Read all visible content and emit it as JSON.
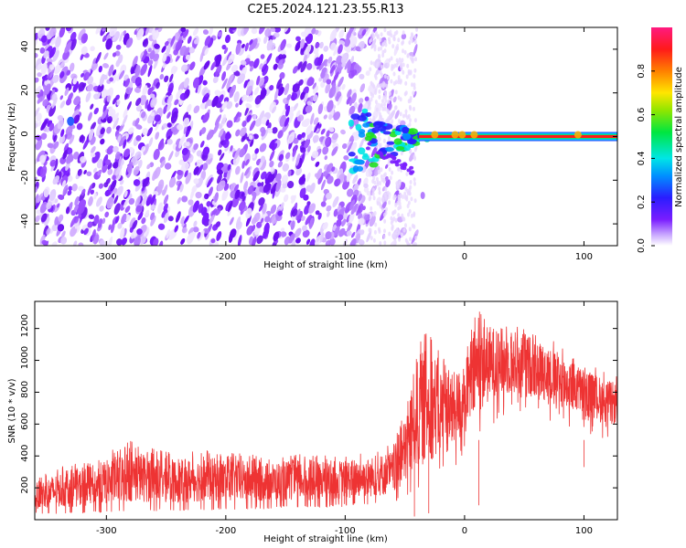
{
  "title": "C2E5.2024.121.23.55.R13",
  "colorbar": {
    "label": "Normalized spectral amplitude",
    "ticks": [
      "0.0",
      "0.2",
      "0.4",
      "0.6",
      "0.8"
    ]
  },
  "chart_data": [
    {
      "type": "heatmap",
      "xlabel": "Height of straight line (km)",
      "ylabel": "Frequency (Hz)",
      "xlim": [
        -360,
        128
      ],
      "ylim": [
        -50,
        50
      ],
      "xticks": [
        -300,
        -200,
        -100,
        0,
        100
      ],
      "yticks": [
        -40,
        -20,
        0,
        20,
        40
      ],
      "zlim": [
        0,
        1
      ],
      "colormap": "rainbow (white-violet-blue-cyan-green-yellow-red-magenta)",
      "description_values": {
        "noise_region_x": [
          -360,
          -60
        ],
        "signal_line_frequency": 0,
        "signal_line_x": [
          -35,
          128
        ],
        "peak_amplitude": 1.0
      }
    },
    {
      "type": "line",
      "xlabel": "Height of straight line (km)",
      "ylabel": "SNR (10 * v/v)",
      "xlim": [
        -360,
        128
      ],
      "ylim": [
        0,
        1370
      ],
      "xticks": [
        -300,
        -200,
        -100,
        0,
        100
      ],
      "yticks": [
        200,
        400,
        600,
        800,
        1000,
        1200
      ],
      "color": "#ee3333",
      "series": [
        {
          "x": [
            -360,
            -340,
            -320,
            -300,
            -280,
            -260,
            -240,
            -220,
            -200,
            -180,
            -160,
            -140,
            -120,
            -100,
            -80,
            -60,
            -50,
            -40,
            -30,
            -20,
            -10,
            0,
            10,
            20,
            30,
            40,
            50,
            60,
            70,
            80,
            90,
            100,
            110,
            120,
            128
          ],
          "y_low": [
            40,
            40,
            45,
            50,
            55,
            60,
            60,
            65,
            70,
            70,
            75,
            80,
            80,
            90,
            100,
            110,
            150,
            200,
            250,
            300,
            350,
            450,
            550,
            650,
            700,
            720,
            720,
            700,
            680,
            650,
            620,
            600,
            580,
            560,
            550
          ],
          "y_high": [
            260,
            330,
            360,
            420,
            500,
            450,
            420,
            440,
            430,
            410,
            400,
            420,
            400,
            420,
            430,
            480,
            700,
            1150,
            1200,
            1100,
            1000,
            1050,
            1350,
            1300,
            1280,
            1260,
            1240,
            1200,
            1150,
            1100,
            1050,
            1000,
            960,
            920,
            900
          ]
        }
      ]
    }
  ]
}
